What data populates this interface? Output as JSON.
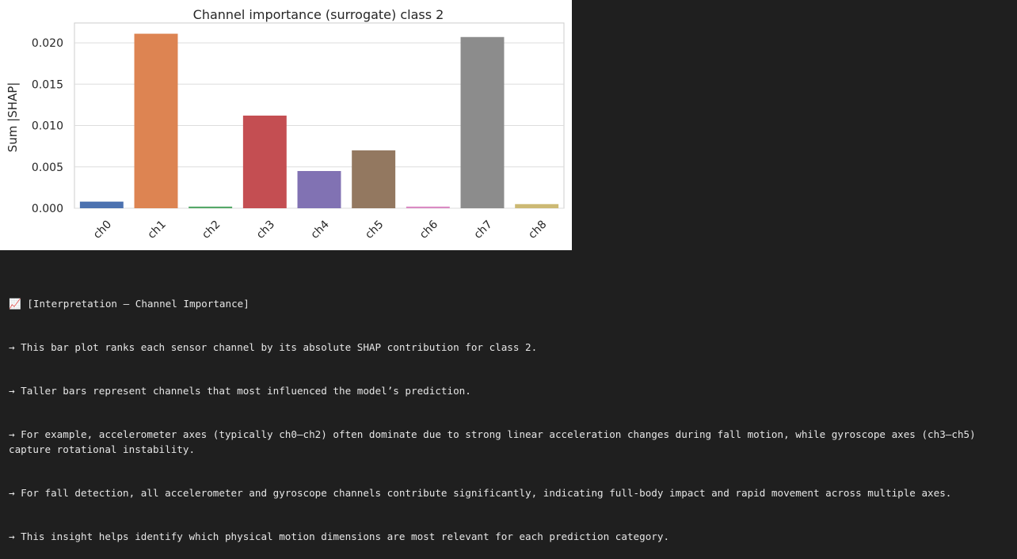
{
  "chart_data": {
    "type": "bar",
    "title": "Channel importance (surrogate) class 2",
    "xlabel": "",
    "ylabel": "Sum |SHAP|",
    "categories": [
      "ch0",
      "ch1",
      "ch2",
      "ch3",
      "ch4",
      "ch5",
      "ch6",
      "ch7",
      "ch8"
    ],
    "values": [
      0.0008,
      0.0211,
      0.0002,
      0.0112,
      0.0045,
      0.007,
      0.0002,
      0.0207,
      0.0005
    ],
    "colors": [
      "#4c72b0",
      "#dd8452",
      "#55a868",
      "#c44e52",
      "#8172b3",
      "#937860",
      "#da8bc3",
      "#8c8c8c",
      "#ccb974"
    ],
    "ylim": [
      0,
      0.0224
    ],
    "yticks": [
      "0.000",
      "0.005",
      "0.010",
      "0.015",
      "0.020"
    ],
    "grid": true,
    "legend": "none"
  },
  "output": {
    "heading_icon": "chart-increasing-icon",
    "heading_emoji": "📈",
    "heading": "[Interpretation – Channel Importance]",
    "lines": [
      "→ This bar plot ranks each sensor channel by its absolute SHAP contribution for class 2.",
      "→ Taller bars represent channels that most influenced the model’s prediction.",
      "→ For example, accelerometer axes (typically ch0–ch2) often dominate due to strong linear acceleration changes during fall motion, while gyroscope axes (ch3–ch5) capture rotational instability.",
      "→ For fall detection, all accelerometer and gyroscope channels contribute significantly, indicating full-body impact and rapid movement across multiple axes.",
      "→ This insight helps identify which physical motion dimensions are most relevant for each prediction category."
    ]
  }
}
